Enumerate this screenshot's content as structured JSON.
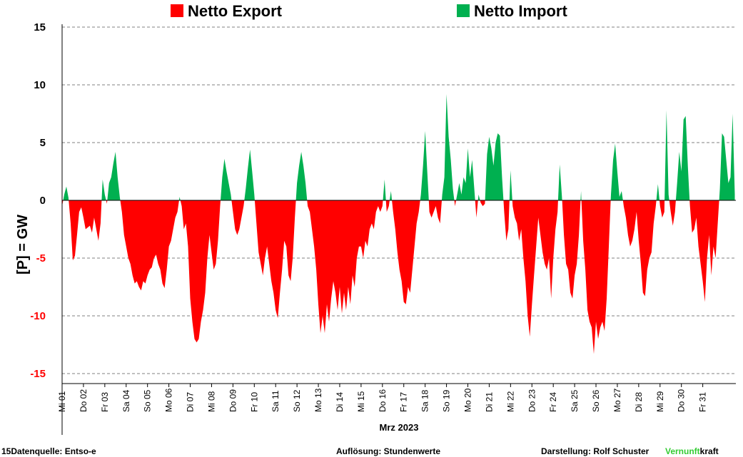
{
  "chart_data": {
    "type": "area",
    "legend": [
      {
        "name": "Netto Export",
        "color": "#ff0000"
      },
      {
        "name": "Netto Import",
        "color": "#00b050"
      }
    ],
    "legend_position": "top",
    "ylabel": "[P] = GW",
    "xlabel": "Mrz 2023",
    "ylim": [
      -15,
      15
    ],
    "yticks": [
      15,
      10,
      5,
      0,
      -5,
      -10,
      -15
    ],
    "grid": true,
    "x_unit": "day of March 2023 (fractional, hourly resolution)",
    "xlim": [
      1,
      32
    ],
    "day_labels": [
      "Mi 01",
      "Do 02",
      "Fr 03",
      "Sa 04",
      "So 05",
      "Mo 06",
      "Di 07",
      "Mi 08",
      "Do 09",
      "Fr 10",
      "Sa 11",
      "So 12",
      "Mo 13",
      "Di 14",
      "Mi 15",
      "Do 16",
      "Fr 17",
      "Sa 18",
      "So 19",
      "Mo 20",
      "Di 21",
      "Mi 22",
      "Do 23",
      "Fr 24",
      "Sa 25",
      "So 26",
      "Mo 27",
      "Di 28",
      "Mi 29",
      "Do 30",
      "Fr 31"
    ],
    "series": [
      {
        "name": "Netto Export / Netto Import",
        "points": [
          [
            1.0,
            -0.5
          ],
          [
            1.1,
            0.5
          ],
          [
            1.2,
            1.2
          ],
          [
            1.3,
            0.2
          ],
          [
            1.4,
            -2
          ],
          [
            1.5,
            -5.2
          ],
          [
            1.6,
            -4.8
          ],
          [
            1.7,
            -3
          ],
          [
            1.8,
            -1
          ],
          [
            1.9,
            -0.6
          ],
          [
            2.0,
            -1.5
          ],
          [
            2.1,
            -2.5
          ],
          [
            2.3,
            -2.2
          ],
          [
            2.4,
            -2.8
          ],
          [
            2.5,
            -1.5
          ],
          [
            2.6,
            -2.5
          ],
          [
            2.7,
            -3.5
          ],
          [
            2.8,
            -2
          ],
          [
            2.9,
            1.8
          ],
          [
            3.0,
            0.5
          ],
          [
            3.1,
            -0.3
          ],
          [
            3.2,
            1.5
          ],
          [
            3.3,
            2
          ],
          [
            3.4,
            3.2
          ],
          [
            3.5,
            4.2
          ],
          [
            3.6,
            2
          ],
          [
            3.7,
            0.3
          ],
          [
            3.8,
            -1
          ],
          [
            3.9,
            -3
          ],
          [
            4.0,
            -4
          ],
          [
            4.1,
            -5
          ],
          [
            4.2,
            -5.5
          ],
          [
            4.3,
            -6.5
          ],
          [
            4.4,
            -7.2
          ],
          [
            4.5,
            -7.0
          ],
          [
            4.6,
            -7.5
          ],
          [
            4.7,
            -7.8
          ],
          [
            4.8,
            -7
          ],
          [
            4.9,
            -7.2
          ],
          [
            5.0,
            -6.5
          ],
          [
            5.1,
            -6
          ],
          [
            5.2,
            -5.8
          ],
          [
            5.3,
            -5
          ],
          [
            5.4,
            -4.7
          ],
          [
            5.5,
            -5.5
          ],
          [
            5.6,
            -6
          ],
          [
            5.7,
            -7.2
          ],
          [
            5.8,
            -7.6
          ],
          [
            5.9,
            -6
          ],
          [
            6.0,
            -4
          ],
          [
            6.1,
            -3.5
          ],
          [
            6.2,
            -2.5
          ],
          [
            6.3,
            -1.5
          ],
          [
            6.4,
            -1
          ],
          [
            6.5,
            0.3
          ],
          [
            6.6,
            -0.5
          ],
          [
            6.7,
            -2.5
          ],
          [
            6.8,
            -2
          ],
          [
            6.9,
            -4
          ],
          [
            7.0,
            -8.5
          ],
          [
            7.1,
            -10.5
          ],
          [
            7.2,
            -12
          ],
          [
            7.3,
            -12.3
          ],
          [
            7.4,
            -12
          ],
          [
            7.5,
            -10.5
          ],
          [
            7.6,
            -9.5
          ],
          [
            7.7,
            -8
          ],
          [
            7.8,
            -5
          ],
          [
            7.9,
            -3
          ],
          [
            8.0,
            -4.5
          ],
          [
            8.1,
            -6
          ],
          [
            8.2,
            -5.5
          ],
          [
            8.3,
            -3.5
          ],
          [
            8.4,
            -0.5
          ],
          [
            8.5,
            2
          ],
          [
            8.6,
            3.6
          ],
          [
            8.7,
            2.5
          ],
          [
            8.8,
            1.5
          ],
          [
            8.9,
            0.5
          ],
          [
            9.0,
            -1
          ],
          [
            9.1,
            -2.5
          ],
          [
            9.2,
            -3
          ],
          [
            9.3,
            -2.5
          ],
          [
            9.4,
            -1.5
          ],
          [
            9.5,
            -0.5
          ],
          [
            9.6,
            1
          ],
          [
            9.7,
            2.8
          ],
          [
            9.8,
            4.4
          ],
          [
            9.9,
            2.5
          ],
          [
            10.0,
            0.5
          ],
          [
            10.1,
            -2
          ],
          [
            10.2,
            -4.5
          ],
          [
            10.3,
            -5.5
          ],
          [
            10.4,
            -6.5
          ],
          [
            10.5,
            -5
          ],
          [
            10.6,
            -4
          ],
          [
            10.7,
            -5.5
          ],
          [
            10.8,
            -7
          ],
          [
            10.9,
            -8
          ],
          [
            11.0,
            -9.5
          ],
          [
            11.1,
            -10.2
          ],
          [
            11.2,
            -8
          ],
          [
            11.3,
            -6
          ],
          [
            11.4,
            -3.5
          ],
          [
            11.5,
            -4
          ],
          [
            11.6,
            -6.5
          ],
          [
            11.7,
            -7
          ],
          [
            11.8,
            -5
          ],
          [
            11.9,
            -1.5
          ],
          [
            12.0,
            1.5
          ],
          [
            12.1,
            3
          ],
          [
            12.2,
            4.2
          ],
          [
            12.3,
            3
          ],
          [
            12.4,
            1.5
          ],
          [
            12.5,
            -0.5
          ],
          [
            12.6,
            -1
          ],
          [
            12.7,
            -2.5
          ],
          [
            12.8,
            -4
          ],
          [
            12.9,
            -6
          ],
          [
            13.0,
            -9
          ],
          [
            13.1,
            -11.5
          ],
          [
            13.2,
            -10
          ],
          [
            13.3,
            -11.5
          ],
          [
            13.4,
            -9
          ],
          [
            13.5,
            -10.5
          ],
          [
            13.6,
            -8.5
          ],
          [
            13.7,
            -7
          ],
          [
            13.8,
            -8
          ],
          [
            13.9,
            -9.5
          ],
          [
            14.0,
            -7.5
          ],
          [
            14.1,
            -9.8
          ],
          [
            14.2,
            -8
          ],
          [
            14.3,
            -9.5
          ],
          [
            14.4,
            -7.5
          ],
          [
            14.5,
            -9
          ],
          [
            14.6,
            -6.5
          ],
          [
            14.7,
            -7.5
          ],
          [
            14.8,
            -5
          ],
          [
            14.9,
            -4
          ],
          [
            15.0,
            -4
          ],
          [
            15.1,
            -5
          ],
          [
            15.2,
            -3.5
          ],
          [
            15.3,
            -4
          ],
          [
            15.4,
            -2.5
          ],
          [
            15.5,
            -2
          ],
          [
            15.6,
            -2.5
          ],
          [
            15.7,
            -1
          ],
          [
            15.8,
            -0.5
          ],
          [
            15.9,
            -1
          ],
          [
            16.0,
            -0.5
          ],
          [
            16.1,
            1.8
          ],
          [
            16.2,
            -1
          ],
          [
            16.3,
            -0.5
          ],
          [
            16.4,
            0.8
          ],
          [
            16.5,
            -1
          ],
          [
            16.6,
            -2.5
          ],
          [
            16.7,
            -4.5
          ],
          [
            16.8,
            -6
          ],
          [
            16.9,
            -7
          ],
          [
            17.0,
            -8.8
          ],
          [
            17.1,
            -9
          ],
          [
            17.2,
            -7.5
          ],
          [
            17.3,
            -8
          ],
          [
            17.4,
            -6
          ],
          [
            17.5,
            -4
          ],
          [
            17.6,
            -2
          ],
          [
            17.7,
            -1
          ],
          [
            17.8,
            0.5
          ],
          [
            17.9,
            3
          ],
          [
            18.0,
            6
          ],
          [
            18.1,
            2.5
          ],
          [
            18.2,
            -1
          ],
          [
            18.3,
            -1.5
          ],
          [
            18.4,
            -1
          ],
          [
            18.5,
            -0.5
          ],
          [
            18.6,
            -1.5
          ],
          [
            18.7,
            -2
          ],
          [
            18.8,
            0.5
          ],
          [
            18.9,
            2
          ],
          [
            19.0,
            9.2
          ],
          [
            19.1,
            5.5
          ],
          [
            19.2,
            3.5
          ],
          [
            19.3,
            1
          ],
          [
            19.4,
            -0.5
          ],
          [
            19.5,
            0.5
          ],
          [
            19.6,
            1.5
          ],
          [
            19.7,
            0.5
          ],
          [
            19.8,
            2
          ],
          [
            19.9,
            1.5
          ],
          [
            20.0,
            4.5
          ],
          [
            20.1,
            2
          ],
          [
            20.2,
            3.5
          ],
          [
            20.3,
            1
          ],
          [
            20.4,
            -1.5
          ],
          [
            20.5,
            0.5
          ],
          [
            20.6,
            -0.2
          ],
          [
            20.7,
            -0.5
          ],
          [
            20.8,
            -0.3
          ],
          [
            20.9,
            4
          ],
          [
            21.0,
            5.5
          ],
          [
            21.1,
            4.5
          ],
          [
            21.2,
            3
          ],
          [
            21.3,
            5
          ],
          [
            21.4,
            5.8
          ],
          [
            21.5,
            5.6
          ],
          [
            21.6,
            2
          ],
          [
            21.7,
            -1
          ],
          [
            21.8,
            -3.5
          ],
          [
            21.9,
            -2.5
          ],
          [
            22.0,
            2.6
          ],
          [
            22.1,
            -0.5
          ],
          [
            22.2,
            -1.5
          ],
          [
            22.3,
            -2
          ],
          [
            22.4,
            -3.5
          ],
          [
            22.5,
            -2.5
          ],
          [
            22.6,
            -5
          ],
          [
            22.7,
            -7
          ],
          [
            22.8,
            -10
          ],
          [
            22.9,
            -11.8
          ],
          [
            23.0,
            -9
          ],
          [
            23.1,
            -6.5
          ],
          [
            23.2,
            -4
          ],
          [
            23.3,
            -1.5
          ],
          [
            23.4,
            -3
          ],
          [
            23.5,
            -4.5
          ],
          [
            23.6,
            -5.5
          ],
          [
            23.7,
            -6
          ],
          [
            23.8,
            -5
          ],
          [
            23.9,
            -8.5
          ],
          [
            24.0,
            -5
          ],
          [
            24.1,
            -2.5
          ],
          [
            24.2,
            -1
          ],
          [
            24.3,
            3.1
          ],
          [
            24.4,
            0.5
          ],
          [
            24.5,
            -3
          ],
          [
            24.6,
            -5.5
          ],
          [
            24.7,
            -6
          ],
          [
            24.8,
            -8
          ],
          [
            24.9,
            -8.5
          ],
          [
            25.0,
            -6.5
          ],
          [
            25.1,
            -5.5
          ],
          [
            25.2,
            -3
          ],
          [
            25.3,
            0.8
          ],
          [
            25.4,
            -3.5
          ],
          [
            25.5,
            -6
          ],
          [
            25.6,
            -9.5
          ],
          [
            25.7,
            -10.5
          ],
          [
            25.8,
            -11
          ],
          [
            25.9,
            -13.3
          ],
          [
            26.0,
            -10.5
          ],
          [
            26.1,
            -12
          ],
          [
            26.2,
            -11
          ],
          [
            26.3,
            -10.5
          ],
          [
            26.4,
            -11.3
          ],
          [
            26.5,
            -8.5
          ],
          [
            26.6,
            -4
          ],
          [
            26.7,
            0.5
          ],
          [
            26.8,
            3.5
          ],
          [
            26.9,
            4.9
          ],
          [
            27.0,
            2.5
          ],
          [
            27.1,
            0.3
          ],
          [
            27.2,
            0.8
          ],
          [
            27.3,
            -0.5
          ],
          [
            27.4,
            -1.5
          ],
          [
            27.5,
            -3
          ],
          [
            27.6,
            -4
          ],
          [
            27.7,
            -3.5
          ],
          [
            27.8,
            -2.5
          ],
          [
            27.9,
            -1
          ],
          [
            28.0,
            -3.5
          ],
          [
            28.1,
            -5.5
          ],
          [
            28.2,
            -8
          ],
          [
            28.3,
            -8.3
          ],
          [
            28.4,
            -6
          ],
          [
            28.5,
            -5
          ],
          [
            28.6,
            -4.5
          ],
          [
            28.7,
            -2
          ],
          [
            28.8,
            -0.5
          ],
          [
            28.9,
            1.4
          ],
          [
            29.0,
            -0.5
          ],
          [
            29.1,
            -1.5
          ],
          [
            29.2,
            -1
          ],
          [
            29.3,
            7.8
          ],
          [
            29.4,
            0.5
          ],
          [
            29.5,
            -1
          ],
          [
            29.6,
            -2.2
          ],
          [
            29.7,
            -1
          ],
          [
            29.8,
            1.5
          ],
          [
            29.9,
            4.2
          ],
          [
            30.0,
            2.5
          ],
          [
            30.1,
            7
          ],
          [
            30.2,
            7.3
          ],
          [
            30.3,
            3
          ],
          [
            30.4,
            -0.5
          ],
          [
            30.5,
            -2.8
          ],
          [
            30.6,
            -2.5
          ],
          [
            30.7,
            -1.5
          ],
          [
            30.8,
            -4
          ],
          [
            30.9,
            -5.5
          ],
          [
            31.0,
            -7
          ],
          [
            31.1,
            -8.8
          ],
          [
            31.2,
            -5
          ],
          [
            31.3,
            -3
          ],
          [
            31.4,
            -6.5
          ],
          [
            31.5,
            -4
          ],
          [
            31.6,
            -5
          ],
          [
            31.7,
            -2
          ],
          [
            31.8,
            1
          ],
          [
            31.9,
            5.8
          ],
          [
            32.0,
            5.5
          ],
          [
            32.1,
            3.5
          ],
          [
            32.2,
            1.5
          ],
          [
            32.3,
            2
          ],
          [
            32.4,
            7.5
          ],
          [
            32.5,
            0.5
          ]
        ]
      }
    ]
  },
  "footer": {
    "source": "15Datenquelle: Entso-e",
    "resolution": "Auflösung: Stundenwerte",
    "author": "Darstellung:  Rolf Schuster",
    "brand_green": "Vernunft",
    "brand_black": "kraft"
  },
  "colors": {
    "export": "#ff0000",
    "import": "#00b050",
    "negative_tick": "#ff0000",
    "grid": "#808080"
  }
}
